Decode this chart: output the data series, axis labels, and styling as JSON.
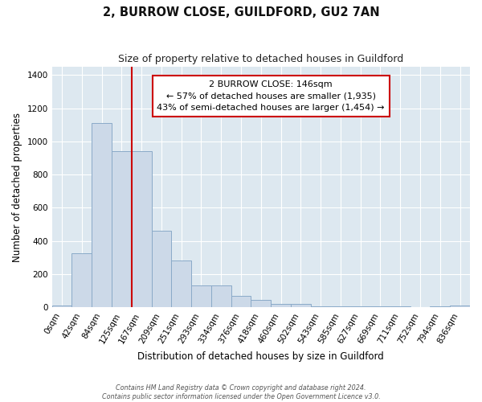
{
  "title": "2, BURROW CLOSE, GUILDFORD, GU2 7AN",
  "subtitle": "Size of property relative to detached houses in Guildford",
  "xlabel": "Distribution of detached houses by size in Guildford",
  "ylabel": "Number of detached properties",
  "bar_labels": [
    "0sqm",
    "42sqm",
    "84sqm",
    "125sqm",
    "167sqm",
    "209sqm",
    "251sqm",
    "293sqm",
    "334sqm",
    "376sqm",
    "418sqm",
    "460sqm",
    "502sqm",
    "543sqm",
    "585sqm",
    "627sqm",
    "669sqm",
    "711sqm",
    "752sqm",
    "794sqm",
    "836sqm"
  ],
  "bar_values": [
    10,
    325,
    1110,
    940,
    940,
    460,
    285,
    130,
    130,
    70,
    45,
    20,
    20,
    5,
    5,
    5,
    5,
    5,
    0,
    5,
    10
  ],
  "bar_color": "#ccd9e8",
  "bar_edge_color": "#8aaac8",
  "vline_x": 3.5,
  "vline_color": "#cc0000",
  "annotation_line1": "2 BURROW CLOSE: 146sqm",
  "annotation_line2": "← 57% of detached houses are smaller (1,935)",
  "annotation_line3": "43% of semi-detached houses are larger (1,454) →",
  "annotation_box_color": "#ffffff",
  "annotation_box_edge": "#cc0000",
  "ylim": [
    0,
    1450
  ],
  "yticks": [
    0,
    200,
    400,
    600,
    800,
    1000,
    1200,
    1400
  ],
  "plot_bg_color": "#dde8f0",
  "fig_bg_color": "#ffffff",
  "grid_color": "#ffffff",
  "footer_line1": "Contains HM Land Registry data © Crown copyright and database right 2024.",
  "footer_line2": "Contains public sector information licensed under the Open Government Licence v3.0."
}
